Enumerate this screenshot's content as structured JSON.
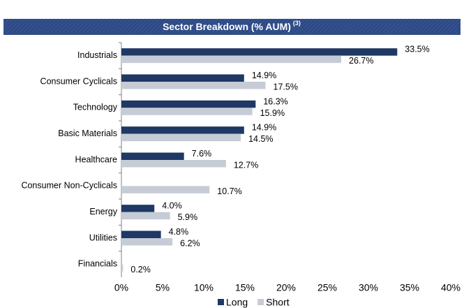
{
  "chart_data": {
    "type": "hbar",
    "title": "Sector Breakdown (% AUM)",
    "title_note": "(3)",
    "categories": [
      "Industrials",
      "Consumer Cyclicals",
      "Technology",
      "Basic Materials",
      "Healthcare",
      "Consumer Non-Cyclicals",
      "Energy",
      "Utilities",
      "Financials"
    ],
    "series": [
      {
        "name": "Long",
        "color": "#1f3864",
        "values": [
          33.5,
          14.9,
          16.3,
          14.9,
          7.6,
          null,
          4.0,
          4.8,
          null
        ],
        "value_labels": [
          "33.5%",
          "14.9%",
          "16.3%",
          "14.9%",
          "7.6%",
          null,
          "4.0%",
          "4.8%",
          null
        ]
      },
      {
        "name": "Short",
        "color": "#c6ccd6",
        "values": [
          26.7,
          17.5,
          15.9,
          14.5,
          12.7,
          10.7,
          5.9,
          6.2,
          0.2
        ],
        "value_labels": [
          "26.7%",
          "17.5%",
          "15.9%",
          "14.5%",
          "12.7%",
          "10.7%",
          "5.9%",
          "6.2%",
          "0.2%"
        ]
      }
    ],
    "xlim": [
      0,
      40
    ],
    "xticks": [
      {
        "value": 0,
        "label": "0%"
      },
      {
        "value": 5,
        "label": "5%"
      },
      {
        "value": 10,
        "label": "10%"
      },
      {
        "value": 15,
        "label": "15%"
      },
      {
        "value": 20,
        "label": "20%"
      },
      {
        "value": 25,
        "label": "25%"
      },
      {
        "value": 30,
        "label": "30%"
      },
      {
        "value": 35,
        "label": "35%"
      },
      {
        "value": 40,
        "label": "40%"
      }
    ],
    "grid": false,
    "legend": "bottom"
  }
}
